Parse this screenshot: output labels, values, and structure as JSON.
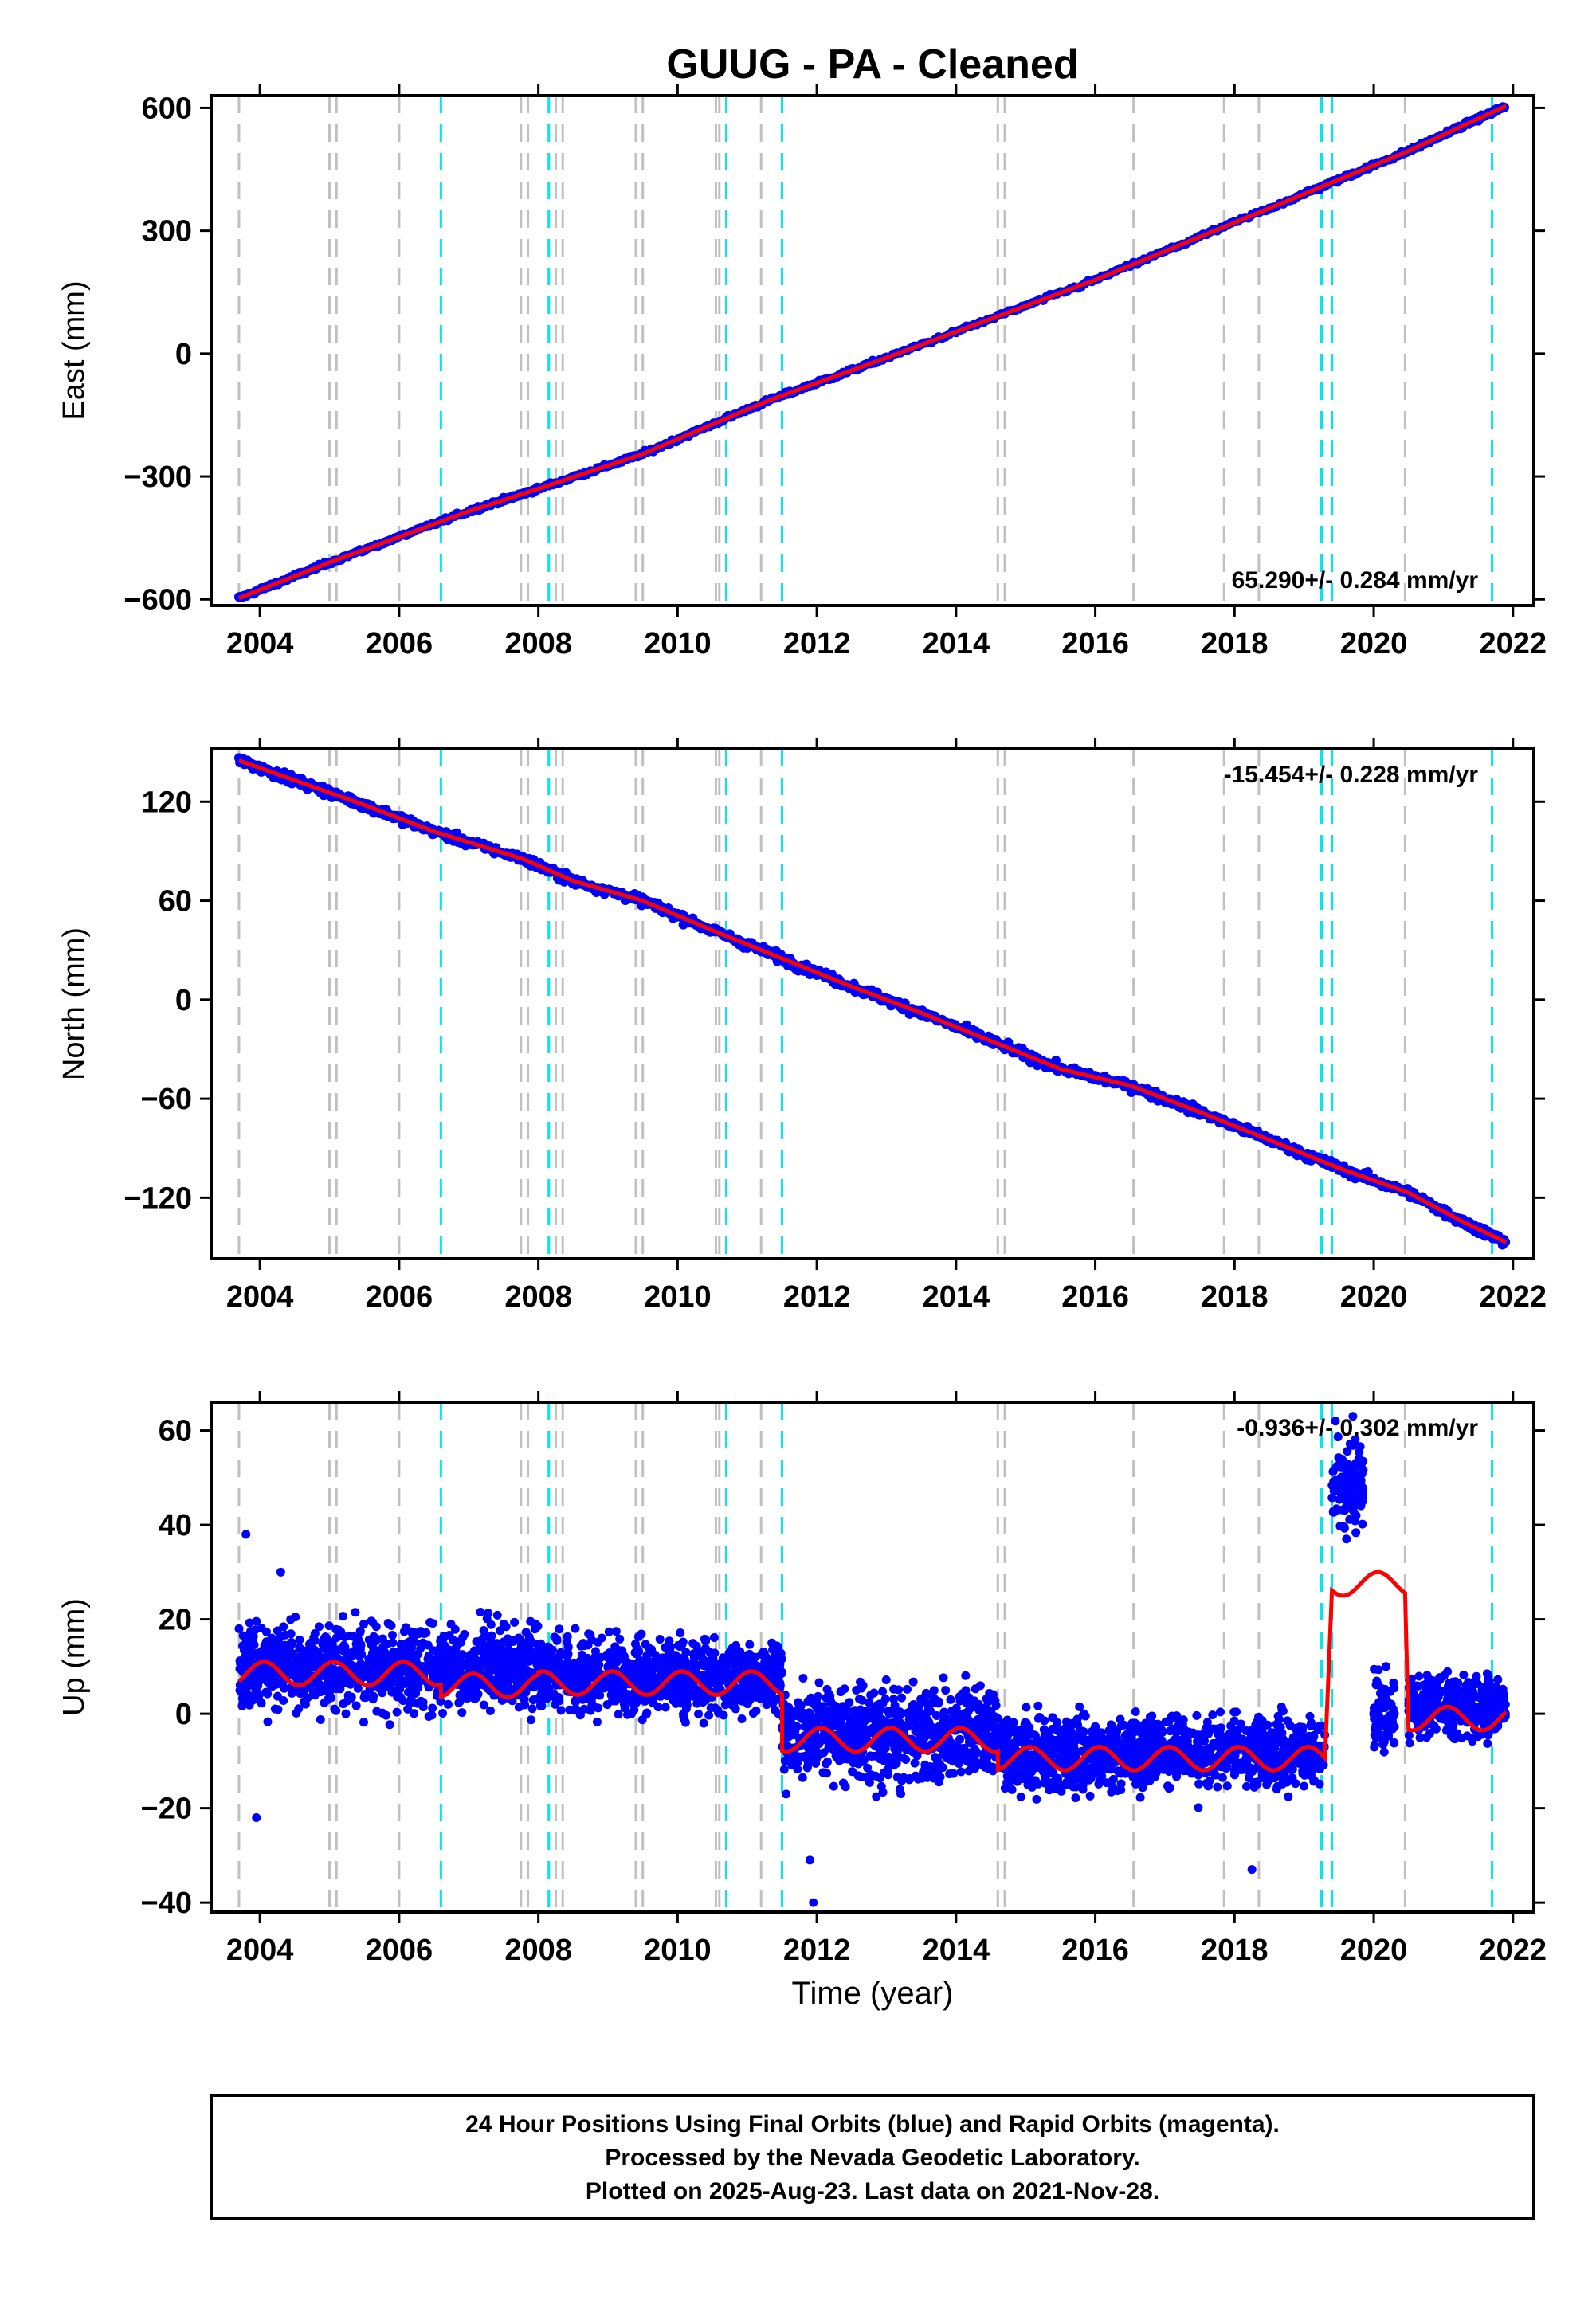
{
  "title": "GUUG  - PA - Cleaned",
  "xlabel": "Time (year)",
  "xlim": [
    2003.3,
    2022.3
  ],
  "x_ticks": [
    2004,
    2006,
    2008,
    2010,
    2012,
    2014,
    2016,
    2018,
    2020,
    2022
  ],
  "gray_lines": [
    2003.7,
    2005.0,
    2005.1,
    2006.0,
    2007.75,
    2007.85,
    2008.25,
    2008.35,
    2009.4,
    2009.5,
    2010.55,
    2010.6,
    2011.2,
    2014.6,
    2014.7,
    2016.55,
    2017.85,
    2018.35,
    2020.45
  ],
  "cyan_lines": [
    2006.6,
    2008.15,
    2010.7,
    2011.5,
    2019.25,
    2019.4,
    2021.7
  ],
  "colors": {
    "data": "#0000ff",
    "model": "#ff0000",
    "gray": "#c0c0c0",
    "cyan": "#00e5ee",
    "axis": "#000000"
  },
  "chart_data": [
    {
      "type": "scatter",
      "ylabel": "East (mm)",
      "ylim": [
        -615,
        630
      ],
      "y_ticks": [
        600,
        300,
        0,
        -300,
        -600
      ],
      "rate_text": "65.290+/- 0.284 mm/yr",
      "rate_position": "bottom-right",
      "series": [
        {
          "kind": "points",
          "x": [
            2003.7,
            2005.0,
            2007.0,
            2008.0,
            2009.5,
            2011.3,
            2013.0,
            2016.0,
            2019.0,
            2020.5,
            2021.9
          ],
          "y": [
            -597,
            -510,
            -385,
            -330,
            -245,
            -115,
            -10,
            180,
            390,
            495,
            605
          ]
        },
        {
          "kind": "model",
          "x": [
            2003.7,
            2005.0,
            2007.0,
            2008.0,
            2009.5,
            2011.3,
            2013.0,
            2016.0,
            2019.0,
            2020.5,
            2021.9
          ],
          "y": [
            -597,
            -510,
            -385,
            -330,
            -245,
            -115,
            -10,
            180,
            390,
            495,
            605
          ]
        }
      ]
    },
    {
      "type": "scatter",
      "ylabel": "North (mm)",
      "ylim": [
        -157,
        152
      ],
      "y_ticks": [
        120,
        60,
        0,
        -60,
        -120
      ],
      "rate_text": "-15.454+/- 0.228 mm/yr",
      "rate_position": "top-right",
      "series": [
        {
          "kind": "points",
          "x": [
            2003.7,
            2004.5,
            2005.5,
            2006.5,
            2007.8,
            2008.5,
            2009.5,
            2010.5,
            2011.5,
            2012.5,
            2013.5,
            2014.5,
            2015.5,
            2016.5,
            2017.5,
            2018.5,
            2019.5,
            2020.5,
            2021.3,
            2021.9
          ],
          "y": [
            145,
            133,
            118,
            102,
            85,
            72,
            60,
            42,
            25,
            8,
            -8,
            -25,
            -42,
            -52,
            -68,
            -85,
            -102,
            -117,
            -135,
            -147
          ]
        },
        {
          "kind": "model",
          "x": [
            2003.7,
            2004.5,
            2005.5,
            2006.5,
            2007.8,
            2008.5,
            2009.5,
            2010.5,
            2011.5,
            2012.5,
            2013.5,
            2014.5,
            2015.5,
            2016.5,
            2017.5,
            2018.5,
            2019.5,
            2020.5,
            2021.3,
            2021.9
          ],
          "y": [
            145,
            133,
            118,
            102,
            85,
            72,
            60,
            42,
            25,
            8,
            -8,
            -25,
            -42,
            -52,
            -68,
            -85,
            -102,
            -117,
            -135,
            -147
          ]
        }
      ]
    },
    {
      "type": "scatter",
      "ylabel": "Up (mm)",
      "ylim": [
        -42,
        66
      ],
      "y_ticks": [
        60,
        40,
        20,
        0,
        -20,
        -40
      ],
      "rate_text": "-0.936+/- 0.302 mm/yr",
      "rate_position": "top-right",
      "series": [
        {
          "kind": "points",
          "segments": [
            {
              "x": [
                2003.7,
                2008.0
              ],
              "mean": 10,
              "spread": 8
            },
            {
              "x": [
                2008.0,
                2011.5
              ],
              "mean": 8,
              "spread": 7
            },
            {
              "x": [
                2011.5,
                2014.6
              ],
              "mean": -4,
              "spread": 9
            },
            {
              "x": [
                2014.6,
                2019.3
              ],
              "mean": -8,
              "spread": 7
            },
            {
              "x": [
                2019.4,
                2019.85
              ],
              "mean": 48,
              "spread": 8
            },
            {
              "x": [
                2020.0,
                2020.3
              ],
              "mean": 0,
              "spread": 8
            },
            {
              "x": [
                2020.5,
                2021.9
              ],
              "mean": 2,
              "spread": 6
            }
          ],
          "outliers": [
            {
              "x": 2003.8,
              "y": 38
            },
            {
              "x": 2003.95,
              "y": -22
            },
            {
              "x": 2004.3,
              "y": 30
            },
            {
              "x": 2011.95,
              "y": -40
            },
            {
              "x": 2011.9,
              "y": -31
            },
            {
              "x": 2018.25,
              "y": -33
            },
            {
              "x": 2019.7,
              "y": 63
            },
            {
              "x": 2019.45,
              "y": 62
            }
          ]
        },
        {
          "kind": "model",
          "steps": [
            {
              "x": [
                2003.7,
                2006.6
              ],
              "mean": 8.5
            },
            {
              "x": [
                2006.6,
                2008.0
              ],
              "mean": 6
            },
            {
              "x": [
                2008.0,
                2011.5
              ],
              "mean": 6.5
            },
            {
              "x": [
                2011.5,
                2014.6
              ],
              "mean": -5.5
            },
            {
              "x": [
                2014.6,
                2019.3
              ],
              "mean": -9.5
            },
            {
              "x": [
                2019.4,
                2020.45
              ],
              "mean": 27.5
            },
            {
              "x": [
                2020.5,
                2021.9
              ],
              "mean": -1
            }
          ],
          "seasonal_amplitude": 2.5
        }
      ]
    }
  ],
  "footer_lines": [
    "24 Hour Positions Using Final Orbits (blue) and Rapid Orbits (magenta).",
    "Processed by the Nevada Geodetic Laboratory.",
    "Plotted on 2025-Aug-23. Last data on 2021-Nov-28."
  ]
}
